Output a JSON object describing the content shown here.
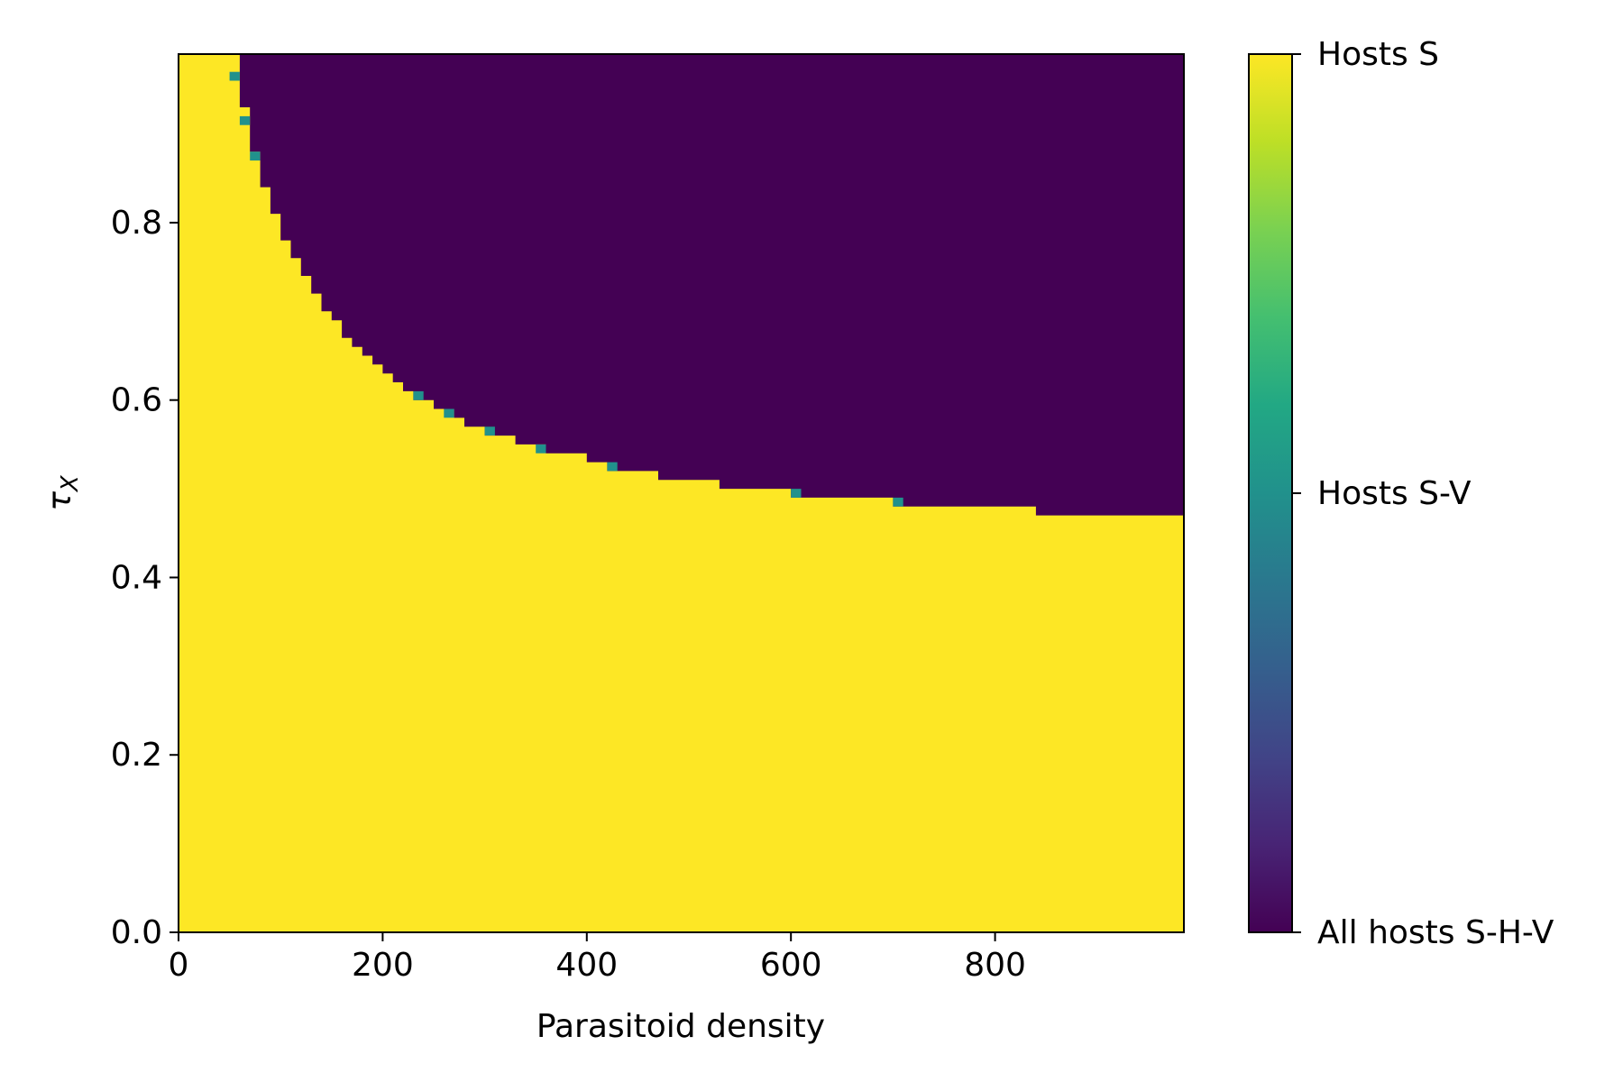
{
  "chart_data": {
    "type": "heatmap",
    "title": "",
    "xlabel": "Parasitoid density",
    "ylabel_base": "τ",
    "ylabel_sub": "X",
    "xlim": [
      0,
      985
    ],
    "ylim": [
      0,
      0.99
    ],
    "xticks": [
      {
        "value": 0,
        "label": "0"
      },
      {
        "value": 200,
        "label": "200"
      },
      {
        "value": 400,
        "label": "400"
      },
      {
        "value": 600,
        "label": "600"
      },
      {
        "value": 800,
        "label": "800"
      }
    ],
    "yticks": [
      {
        "value": 0.0,
        "label": "0.0"
      },
      {
        "value": 0.2,
        "label": "0.2"
      },
      {
        "value": 0.4,
        "label": "0.4"
      },
      {
        "value": 0.6,
        "label": "0.6"
      },
      {
        "value": 0.8,
        "label": "0.8"
      }
    ],
    "grid": false,
    "colormap": "viridis",
    "colors": {
      "hosts_s": "#fde725",
      "hosts_s_v": "#21918c",
      "all_hosts_s_h_v": "#440154"
    },
    "cell_width": 10,
    "cell_height": 0.01,
    "background_state": "All hosts S-H-V",
    "region_hosts_s_upper_boundary": {
      "x": [
        0,
        50,
        60,
        70,
        80,
        90,
        100,
        110,
        120,
        130,
        140,
        150,
        160,
        170,
        180,
        190,
        200,
        210,
        220,
        230,
        250,
        270,
        280,
        300,
        330,
        360,
        400,
        420,
        470,
        530,
        600,
        700,
        840,
        985
      ],
      "tau_x": [
        0.99,
        0.99,
        0.93,
        0.88,
        0.84,
        0.81,
        0.78,
        0.76,
        0.74,
        0.72,
        0.7,
        0.69,
        0.67,
        0.66,
        0.65,
        0.64,
        0.63,
        0.62,
        0.61,
        0.6,
        0.59,
        0.58,
        0.57,
        0.56,
        0.55,
        0.54,
        0.53,
        0.52,
        0.51,
        0.5,
        0.49,
        0.48,
        0.47,
        0.47
      ]
    },
    "hosts_s_v_cells": [
      {
        "x": 50,
        "tau_x": 0.96
      },
      {
        "x": 60,
        "tau_x": 0.91
      },
      {
        "x": 70,
        "tau_x": 0.87
      },
      {
        "x": 230,
        "tau_x": 0.6
      },
      {
        "x": 260,
        "tau_x": 0.58
      },
      {
        "x": 300,
        "tau_x": 0.56
      },
      {
        "x": 350,
        "tau_x": 0.54
      },
      {
        "x": 420,
        "tau_x": 0.52
      },
      {
        "x": 600,
        "tau_x": 0.49
      },
      {
        "x": 700,
        "tau_x": 0.48
      }
    ],
    "colorbar": {
      "labels": [
        {
          "state": "hosts_s",
          "label": "Hosts S"
        },
        {
          "state": "hosts_s_v",
          "label": "Hosts S-V"
        },
        {
          "state": "all_hosts_s_h_v",
          "label": "All hosts S-H-V"
        }
      ]
    }
  }
}
